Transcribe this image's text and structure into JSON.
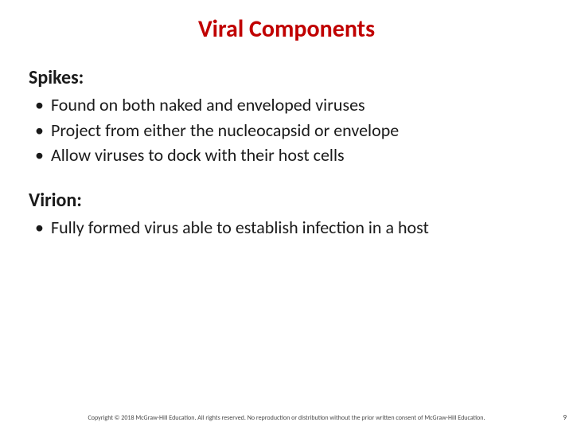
{
  "title": {
    "text": "Viral Components",
    "color": "#c00000",
    "fontsize": 30
  },
  "body": {
    "color": "#1a1a1a",
    "section_fontsize": 24,
    "bullet_fontsize": 22,
    "sections": [
      {
        "heading": "Spikes:",
        "bullets": [
          "Found on both naked and enveloped viruses",
          "Project from either the nucleocapsid or envelope",
          "Allow viruses to dock with their host cells"
        ]
      },
      {
        "heading": "Virion:",
        "bullets": [
          "Fully formed virus able to establish infection in a host"
        ]
      }
    ]
  },
  "footer": {
    "text": "Copyright © 2018 McGraw-Hill Education. All rights reserved. No reproduction or distribution without the prior written consent of McGraw-Hill Education.",
    "fontsize": 8,
    "color": "#474747"
  },
  "pagenum": {
    "text": "9",
    "fontsize": 9,
    "color": "#474747"
  }
}
